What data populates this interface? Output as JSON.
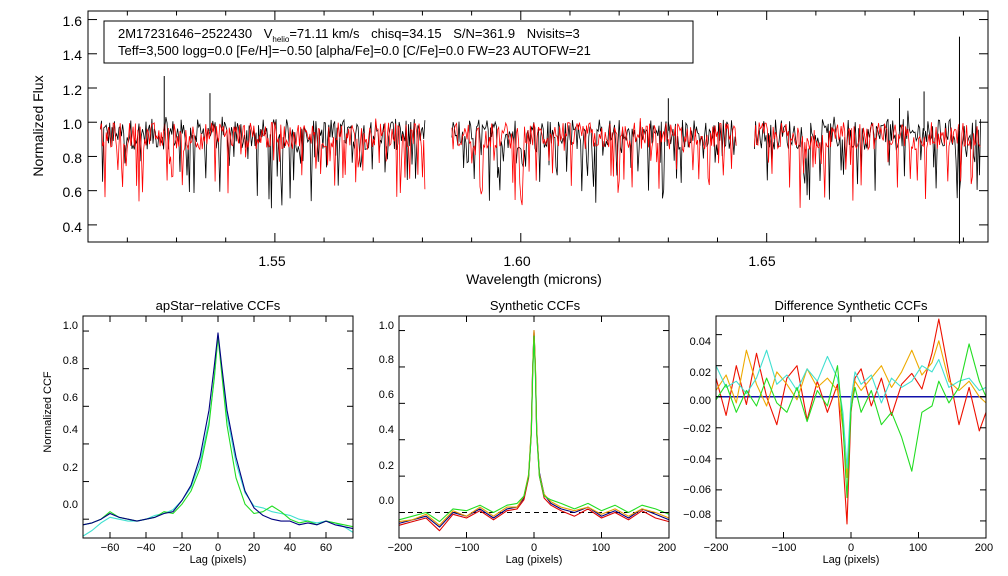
{
  "chart_data": [
    {
      "type": "line",
      "id": "spectrum",
      "title": "",
      "xlabel": "Wavelength (microns)",
      "ylabel": "Normalized Flux",
      "xlim": [
        1.512,
        1.695
      ],
      "ylim": [
        0.3,
        1.65
      ],
      "xticks": [
        1.55,
        1.6,
        1.65
      ],
      "xtick_labels": [
        "1.55",
        "1.60",
        "1.65"
      ],
      "yticks": [
        0.4,
        0.6,
        0.8,
        1.0,
        1.2,
        1.4,
        1.6
      ],
      "ytick_labels": [
        "0.4",
        "0.6",
        "0.8",
        "1.0",
        "1.2",
        "1.4",
        "1.6"
      ],
      "annotation": {
        "star_id": "2M17231646−2522430",
        "vhelio_prefix": "V",
        "vhelio_sub": "helio",
        "vhelio_value": "=71.11 km/s",
        "chisq": "chisq=34.15",
        "snr": "S/N=361.9",
        "nvisits": "Nvisits=3",
        "line2": "Teff=3,500 logg=0.0 [Fe/H]=−0.50 [alpha/Fe]=0.0 [C/Fe]=0.0 FW=23 AUTOFW=21"
      },
      "chips": [
        [
          1.5145,
          1.5805
        ],
        [
          1.586,
          1.6438
        ],
        [
          1.6475,
          1.6935
        ]
      ],
      "series": [
        {
          "name": "observed spectrum",
          "color": "#000000",
          "continuum": 0.93,
          "spread": 0.09
        },
        {
          "name": "synthetic fit",
          "color": "#ff0000",
          "continuum": 0.92,
          "spread": 0.08
        }
      ],
      "spikes": [
        {
          "x": 1.5275,
          "y": 1.27
        },
        {
          "x": 1.5368,
          "y": 1.17
        },
        {
          "x": 1.63,
          "y": 1.14
        },
        {
          "x": 1.677,
          "y": 1.14
        },
        {
          "x": 1.682,
          "y": 1.18
        },
        {
          "x": 1.6892,
          "y": 1.5
        },
        {
          "x": 1.6892,
          "y": 0.29
        }
      ]
    },
    {
      "type": "line",
      "id": "ccf1",
      "title": "apStar−relative CCFs",
      "xlabel": "Lag (pixels)",
      "ylabel": "Normalized CCF",
      "xlim": [
        -75,
        75
      ],
      "ylim": [
        -0.1,
        1.08
      ],
      "xticks": [
        -60,
        -40,
        -20,
        0,
        20,
        40,
        60
      ],
      "xtick_labels": [
        "−60",
        "−40",
        "−20",
        "0",
        "20",
        "40",
        "60"
      ],
      "yticks": [
        0.0,
        0.2,
        0.4,
        0.6,
        0.8,
        1.0
      ],
      "ytick_labels": [
        "0.0",
        "0.2",
        "0.4",
        "0.6",
        "0.8",
        "1.0"
      ],
      "series": [
        {
          "name": "cyan",
          "color": "#40e0d0",
          "x": [
            -75,
            -70,
            -65,
            -60,
            -55,
            -50,
            -45,
            -40,
            -35,
            -30,
            -25,
            -20,
            -15,
            -10,
            -5,
            -2,
            0,
            2,
            5,
            10,
            15,
            20,
            25,
            30,
            35,
            40,
            45,
            50,
            55,
            60,
            65,
            70,
            75
          ],
          "y": [
            -0.09,
            -0.06,
            -0.02,
            0.01,
            0.0,
            -0.01,
            -0.01,
            0.0,
            0.02,
            0.03,
            0.05,
            0.1,
            0.17,
            0.3,
            0.52,
            0.75,
            0.98,
            0.8,
            0.55,
            0.3,
            0.14,
            0.07,
            0.06,
            0.04,
            0.03,
            0.02,
            0.0,
            -0.01,
            -0.02,
            -0.01,
            -0.02,
            -0.04,
            -0.07
          ]
        },
        {
          "name": "green",
          "color": "#22dd22",
          "x": [
            -75,
            -70,
            -65,
            -60,
            -55,
            -50,
            -45,
            -40,
            -35,
            -30,
            -25,
            -20,
            -15,
            -10,
            -5,
            -2,
            0,
            2,
            5,
            10,
            15,
            20,
            25,
            30,
            35,
            40,
            45,
            50,
            55,
            60,
            65,
            70,
            75
          ],
          "y": [
            -0.03,
            -0.02,
            0.0,
            0.04,
            0.01,
            0.0,
            -0.01,
            0.0,
            0.01,
            0.04,
            0.03,
            0.08,
            0.15,
            0.27,
            0.5,
            0.76,
            0.97,
            0.78,
            0.5,
            0.22,
            0.08,
            0.03,
            0.04,
            0.07,
            0.04,
            0.0,
            -0.02,
            -0.01,
            -0.03,
            -0.01,
            -0.02,
            -0.03,
            -0.04
          ]
        },
        {
          "name": "blue",
          "color": "#000080",
          "x": [
            -75,
            -70,
            -65,
            -60,
            -55,
            -50,
            -45,
            -40,
            -35,
            -30,
            -25,
            -20,
            -15,
            -10,
            -5,
            -2,
            0,
            2,
            5,
            10,
            15,
            20,
            25,
            30,
            35,
            40,
            45,
            50,
            55,
            60,
            65,
            70,
            75
          ],
          "y": [
            -0.03,
            -0.02,
            0.0,
            0.03,
            0.01,
            0.0,
            -0.01,
            0.0,
            0.01,
            0.03,
            0.04,
            0.1,
            0.18,
            0.33,
            0.58,
            0.82,
            0.99,
            0.82,
            0.58,
            0.33,
            0.15,
            0.06,
            0.02,
            0.0,
            -0.01,
            -0.01,
            -0.03,
            -0.02,
            -0.03,
            -0.01,
            -0.03,
            -0.04,
            -0.05
          ]
        }
      ]
    },
    {
      "type": "line",
      "id": "ccf2",
      "title": "Synthetic CCFs",
      "xlabel": "Lag (pixels)",
      "ylabel": "",
      "xlim": [
        -200,
        200
      ],
      "ylim": [
        -0.14,
        1.08
      ],
      "xticks": [
        -200,
        -100,
        0,
        100,
        200
      ],
      "xtick_labels": [
        "−200",
        "−100",
        "0",
        "100",
        "200"
      ],
      "yticks": [
        0.0,
        0.2,
        0.4,
        0.6,
        0.8,
        1.0
      ],
      "ytick_labels": [
        "0.0",
        "0.2",
        "0.4",
        "0.6",
        "0.8",
        "1.0"
      ],
      "zero_line": true,
      "series": [
        {
          "name": "navy",
          "color": "#000080",
          "x": [
            -200,
            -180,
            -160,
            -140,
            -120,
            -100,
            -80,
            -60,
            -40,
            -25,
            -15,
            -8,
            -4,
            -2,
            0,
            2,
            4,
            8,
            15,
            25,
            40,
            60,
            80,
            100,
            120,
            140,
            160,
            180,
            200
          ],
          "y": [
            -0.06,
            -0.04,
            -0.02,
            -0.08,
            0.0,
            -0.02,
            0.02,
            -0.03,
            0.02,
            0.03,
            0.08,
            0.2,
            0.45,
            0.78,
            1.0,
            0.8,
            0.45,
            0.22,
            0.1,
            0.05,
            0.02,
            0.0,
            0.03,
            -0.02,
            0.01,
            -0.03,
            0.02,
            -0.01,
            -0.04
          ]
        },
        {
          "name": "red",
          "color": "#dd0000",
          "x": [
            -200,
            -180,
            -160,
            -140,
            -120,
            -100,
            -80,
            -60,
            -40,
            -25,
            -15,
            -8,
            -4,
            -2,
            0,
            2,
            4,
            8,
            15,
            25,
            40,
            60,
            80,
            100,
            120,
            140,
            160,
            180,
            200
          ],
          "y": [
            -0.07,
            -0.05,
            -0.03,
            -0.1,
            -0.01,
            -0.03,
            0.01,
            -0.04,
            0.01,
            0.02,
            0.07,
            0.19,
            0.44,
            0.76,
            0.99,
            0.79,
            0.44,
            0.2,
            0.08,
            0.04,
            0.01,
            -0.02,
            0.02,
            -0.03,
            0.0,
            -0.04,
            0.01,
            -0.03,
            -0.05
          ]
        },
        {
          "name": "orange",
          "color": "#ee9900",
          "x": [
            -200,
            -180,
            -160,
            -140,
            -120,
            -100,
            -80,
            -60,
            -40,
            -25,
            -15,
            -8,
            -4,
            -2,
            0,
            2,
            4,
            8,
            15,
            25,
            40,
            60,
            80,
            100,
            120,
            140,
            160,
            180,
            200
          ],
          "y": [
            -0.05,
            -0.04,
            -0.01,
            -0.07,
            0.01,
            -0.02,
            0.03,
            -0.02,
            0.03,
            0.03,
            0.09,
            0.21,
            0.46,
            0.78,
            1.0,
            0.81,
            0.46,
            0.21,
            0.1,
            0.06,
            0.03,
            0.01,
            0.03,
            -0.01,
            0.02,
            -0.02,
            0.02,
            0.0,
            -0.03
          ]
        },
        {
          "name": "green",
          "color": "#22dd22",
          "x": [
            -200,
            -180,
            -160,
            -140,
            -120,
            -100,
            -80,
            -60,
            -40,
            -25,
            -15,
            -8,
            -4,
            -2,
            0,
            2,
            4,
            8,
            15,
            25,
            40,
            60,
            80,
            100,
            120,
            140,
            160,
            180,
            200
          ],
          "y": [
            -0.04,
            -0.02,
            0.0,
            -0.05,
            0.02,
            0.01,
            0.04,
            0.0,
            0.04,
            0.05,
            0.09,
            0.2,
            0.43,
            0.74,
            0.97,
            0.76,
            0.43,
            0.2,
            0.09,
            0.07,
            0.05,
            0.02,
            0.05,
            0.01,
            0.04,
            0.0,
            0.04,
            0.02,
            -0.01
          ]
        }
      ]
    },
    {
      "type": "line",
      "id": "ccf3",
      "title": "Difference Synthetic CCFs",
      "xlabel": "Lag (pixels)",
      "ylabel": "",
      "xlim": [
        -200,
        200
      ],
      "ylim": [
        -0.091,
        0.052
      ],
      "xticks": [
        -200,
        -100,
        0,
        100,
        200
      ],
      "xtick_labels": [
        "−200",
        "−100",
        "0",
        "100",
        "200"
      ],
      "yticks": [
        0.04,
        0.02,
        0.0,
        -0.02,
        -0.04,
        -0.06,
        -0.08
      ],
      "ytick_labels": [
        "0.04",
        "0.02",
        "0.00",
        "−0.02",
        "−0.04",
        "−0.06",
        "−0.08"
      ],
      "series": [
        {
          "name": "red",
          "color": "#ee1100",
          "x": [
            -200,
            -185,
            -170,
            -155,
            -140,
            -125,
            -110,
            -95,
            -80,
            -65,
            -50,
            -35,
            -20,
            -12,
            -6,
            0,
            6,
            15,
            30,
            45,
            60,
            75,
            90,
            105,
            120,
            130,
            145,
            160,
            175,
            190,
            200
          ],
          "y": [
            0.012,
            -0.012,
            0.02,
            -0.005,
            0.028,
            0.0,
            -0.018,
            0.012,
            0.02,
            -0.015,
            0.01,
            -0.01,
            0.008,
            -0.04,
            -0.082,
            -0.01,
            0.012,
            0.018,
            -0.006,
            0.012,
            -0.012,
            0.008,
            0.015,
            0.005,
            0.028,
            0.05,
            0.015,
            -0.018,
            0.006,
            -0.022,
            -0.01
          ]
        },
        {
          "name": "orange",
          "color": "#eeaa00",
          "x": [
            -200,
            -185,
            -170,
            -155,
            -140,
            -125,
            -110,
            -95,
            -80,
            -65,
            -50,
            -35,
            -20,
            -12,
            -6,
            0,
            6,
            15,
            30,
            45,
            60,
            75,
            90,
            105,
            120,
            130,
            145,
            160,
            175,
            190,
            200
          ],
          "y": [
            0.004,
            0.014,
            -0.004,
            0.03,
            0.008,
            -0.006,
            0.016,
            0.008,
            -0.002,
            0.018,
            0.006,
            0.012,
            0.004,
            -0.02,
            -0.052,
            -0.004,
            0.01,
            0.004,
            0.012,
            0.02,
            0.006,
            0.016,
            0.03,
            0.014,
            0.022,
            0.036,
            0.01,
            0.004,
            0.01,
            0.0,
            -0.004
          ]
        },
        {
          "name": "cyan",
          "color": "#40e0d0",
          "x": [
            -200,
            -185,
            -170,
            -155,
            -140,
            -125,
            -110,
            -95,
            -80,
            -65,
            -50,
            -35,
            -20,
            -12,
            -6,
            0,
            6,
            15,
            30,
            45,
            60,
            75,
            90,
            105,
            120,
            130,
            145,
            160,
            175,
            190,
            200
          ],
          "y": [
            0.02,
            0.006,
            0.01,
            0.002,
            0.012,
            0.03,
            0.008,
            0.014,
            0.004,
            0.018,
            0.01,
            0.026,
            0.012,
            -0.01,
            -0.046,
            -0.002,
            0.016,
            0.008,
            0.014,
            -0.004,
            0.012,
            0.006,
            0.01,
            0.02,
            0.016,
            0.024,
            0.006,
            0.01,
            0.012,
            0.004,
            0.006
          ]
        },
        {
          "name": "green",
          "color": "#22dd22",
          "x": [
            -200,
            -185,
            -170,
            -155,
            -140,
            -125,
            -110,
            -95,
            -80,
            -65,
            -50,
            -35,
            -20,
            -12,
            -6,
            0,
            6,
            15,
            30,
            45,
            60,
            75,
            90,
            105,
            120,
            130,
            145,
            160,
            175,
            190,
            200
          ],
          "y": [
            -0.002,
            0.008,
            -0.01,
            0.004,
            -0.006,
            0.012,
            -0.004,
            -0.01,
            0.006,
            -0.016,
            0.004,
            -0.006,
            0.02,
            -0.018,
            -0.065,
            -0.008,
            0.006,
            -0.01,
            0.004,
            -0.018,
            -0.01,
            -0.026,
            -0.048,
            -0.01,
            -0.006,
            0.01,
            -0.004,
            0.006,
            0.034,
            0.01,
            0.0
          ]
        }
      ]
    }
  ]
}
